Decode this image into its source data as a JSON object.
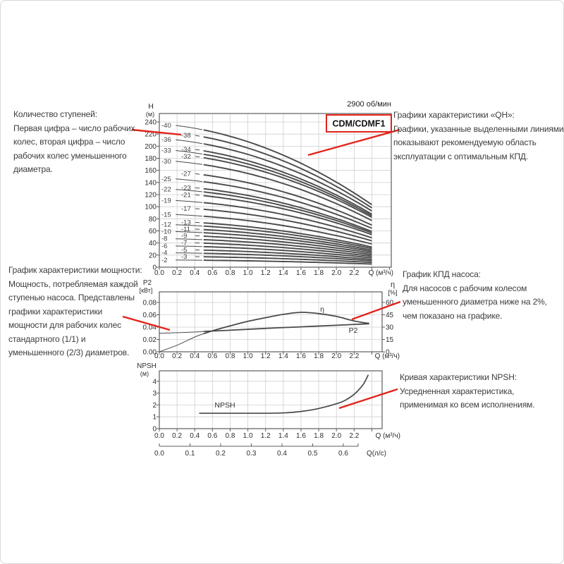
{
  "page": {
    "rpm_label": "2900 об/мин",
    "pump_model": "CDM/CDMF1"
  },
  "colors": {
    "accent_red": "#e2231a",
    "curve": "#4a4a4a",
    "grid": "#cfcfcf",
    "axis": "#5c5c5c",
    "text": "#3c3c3c"
  },
  "annotations": {
    "stages": {
      "lines": [
        "Количество ступеней:",
        "Первая цифра – число рабочих",
        "колес, вторая цифра – число",
        "рабочих колес уменьшенного",
        "диаметра."
      ]
    },
    "qh": {
      "lines": [
        "Графики характеристики «QH»:",
        "Графики, указанные выделенными линиями,",
        "показывают рекомендуемую область",
        "эксплуатации с оптимальным КПД."
      ]
    },
    "power": {
      "lines": [
        "График характеристики мощности:",
        "Мощность, потребляемая каждой",
        "ступенью насоса. Представлены",
        "графики характеристики",
        "мощности для рабочих колес",
        "стандартного (1/1) и",
        "уменьшенного (2/3) диаметров."
      ]
    },
    "efficiency": {
      "lines": [
        "График КПД насоса:",
        "Для насосов с рабочим колесом",
        "уменьшенного диаметра ниже на 2%,",
        "чем показано на графике."
      ]
    },
    "npsh": {
      "lines": [
        "Кривая характеристики NPSH:",
        "Усредненная характеристика,",
        "применимая ко всем исполнениям."
      ]
    }
  },
  "chart_data": [
    {
      "id": "qh",
      "type": "line",
      "title": "CDM/CDMF1",
      "rpm": "2900 об/мин",
      "ylabel": "H",
      "ylabel_unit": "(м)",
      "xlabel": "Q (м³/ч)",
      "xlim": [
        0,
        2.62
      ],
      "ylim": [
        0,
        254
      ],
      "grid": true,
      "yticks": [
        0,
        20,
        40,
        60,
        80,
        100,
        120,
        140,
        160,
        180,
        200,
        220,
        240
      ],
      "xticks": [
        "0.0",
        "0.2",
        "0.4",
        "0.6",
        "0.8",
        "1.0",
        "1.2",
        "1.4",
        "1.6",
        "1.8",
        "2.0",
        "2.2"
      ],
      "note": "each curve: head = H at shutoff (м); col 0 = left label column, col 1 = right label column; bold part Q 0.5–2.4 м³/ч is recommended duty range",
      "curves": [
        {
          "label": "-40",
          "head": 237,
          "col": 0
        },
        {
          "label": "-38",
          "head": 225,
          "col": 1
        },
        {
          "label": "-36",
          "head": 213,
          "col": 0
        },
        {
          "label": "-34",
          "head": 201,
          "col": 1
        },
        {
          "label": "-33",
          "head": 195,
          "col": 0
        },
        {
          "label": "-32",
          "head": 189,
          "col": 1
        },
        {
          "label": "-30",
          "head": 177,
          "col": 0
        },
        {
          "label": "-27",
          "head": 159.5,
          "col": 1
        },
        {
          "label": "-25",
          "head": 147.5,
          "col": 0
        },
        {
          "label": "-23",
          "head": 135.5,
          "col": 1
        },
        {
          "label": "-22",
          "head": 130,
          "col": 0
        },
        {
          "label": "-21",
          "head": 123.5,
          "col": 1
        },
        {
          "label": "-19",
          "head": 111.5,
          "col": 0
        },
        {
          "label": "-17",
          "head": 100,
          "col": 1
        },
        {
          "label": "-15",
          "head": 88,
          "col": 0
        },
        {
          "label": "-13",
          "head": 76.5,
          "col": 1
        },
        {
          "label": "-12",
          "head": 71,
          "col": 0
        },
        {
          "label": "-11",
          "head": 65,
          "col": 1
        },
        {
          "label": "-10",
          "head": 59.5,
          "col": 0
        },
        {
          "label": "-9",
          "head": 53.5,
          "col": 1
        },
        {
          "label": "-8",
          "head": 47.5,
          "col": 0
        },
        {
          "label": "-7",
          "head": 41.5,
          "col": 1
        },
        {
          "label": "-6",
          "head": 35.5,
          "col": 0
        },
        {
          "label": "-5",
          "head": 29.5,
          "col": 1
        },
        {
          "label": "-4",
          "head": 24,
          "col": 0
        },
        {
          "label": "-3",
          "head": 18,
          "col": 1
        },
        {
          "label": "-2",
          "head": 12,
          "col": 0
        }
      ]
    },
    {
      "id": "power_eff",
      "type": "line",
      "ylabel": "P2",
      "ylabel_unit": "[кВт]",
      "y2label": "η",
      "y2label_unit": "[%]",
      "xlabel": "Q (м³/ч)",
      "xlim": [
        0,
        2.52
      ],
      "ylim": [
        0,
        0.097
      ],
      "y2lim": [
        0,
        72
      ],
      "grid": true,
      "yticks": [
        "0.00",
        "0.02",
        "0.04",
        "0.06",
        "0.08"
      ],
      "y2ticks": [
        0,
        15,
        30,
        45,
        60
      ],
      "xticks": [
        "0.0",
        "0.2",
        "0.4",
        "0.6",
        "0.8",
        "1.0",
        "1.2",
        "1.4",
        "1.6",
        "1.8",
        "2.0",
        "2.2"
      ],
      "series": [
        {
          "name": "η",
          "axis": "right",
          "x": [
            0,
            0.2,
            0.4,
            0.5,
            0.6,
            0.8,
            1.0,
            1.2,
            1.4,
            1.6,
            1.8,
            2.0,
            2.2,
            2.37
          ],
          "y": [
            0,
            8,
            18,
            22,
            25.5,
            31.5,
            37,
            41.5,
            45.5,
            48,
            46.5,
            43,
            37.5,
            34.5
          ]
        },
        {
          "name": "P2",
          "axis": "left",
          "x": [
            0,
            0.2,
            0.4,
            0.5,
            0.8,
            1.2,
            1.6,
            2.0,
            2.37
          ],
          "y": [
            0.03,
            0.031,
            0.032,
            0.033,
            0.035,
            0.038,
            0.0405,
            0.043,
            0.0455
          ]
        }
      ]
    },
    {
      "id": "npsh",
      "type": "line",
      "ylabel": "NPSH",
      "ylabel_unit": "(м)",
      "xlabel": "Q (м³/ч)",
      "x2label": "Q(л/с)",
      "xlim": [
        0,
        2.52
      ],
      "ylim": [
        0,
        4.9
      ],
      "grid": true,
      "yticks": [
        0,
        1,
        2,
        3,
        4
      ],
      "xticks": [
        "0.0",
        "0.2",
        "0.4",
        "0.6",
        "0.8",
        "1.0",
        "1.2",
        "1.4",
        "1.6",
        "1.8",
        "2.0",
        "2.2"
      ],
      "x2ticks": [
        "0.0",
        "0.1",
        "0.2",
        "0.3",
        "0.4",
        "0.5",
        "0.6"
      ],
      "series": [
        {
          "name": "NPSH",
          "axis": "left",
          "x": [
            0.45,
            0.8,
            1.2,
            1.4,
            1.6,
            1.8,
            2.0,
            2.1,
            2.2,
            2.3,
            2.36
          ],
          "y": [
            1.3,
            1.3,
            1.3,
            1.33,
            1.45,
            1.7,
            2.1,
            2.4,
            2.9,
            3.7,
            4.55
          ]
        }
      ]
    }
  ]
}
